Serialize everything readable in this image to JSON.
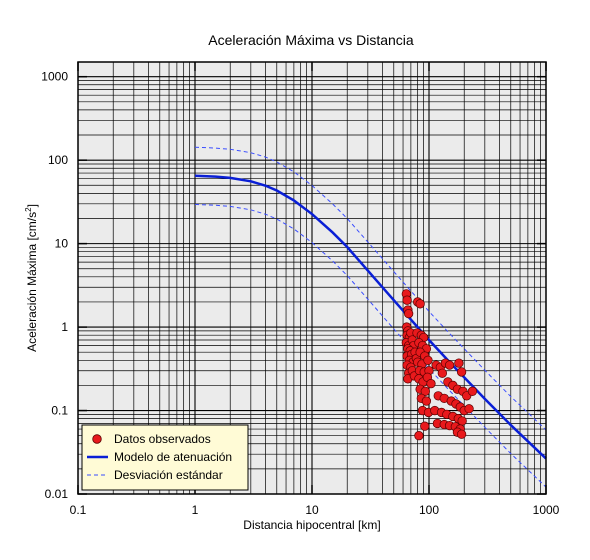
{
  "chart_data": {
    "type": "scatter",
    "title": "Aceleración Máxima vs Distancia",
    "xlabel": "Distancia hipocentral [km]",
    "ylabel": "Aceleración Máxima [cm/s",
    "ylabel_sup": "2",
    "ylabel_end": "]",
    "x_scale": "log",
    "y_scale": "log",
    "xlim": [
      0.1,
      1000
    ],
    "ylim": [
      0.01,
      1500
    ],
    "x_ticks": [
      {
        "value": 0.1,
        "label": "0.1"
      },
      {
        "value": 1,
        "label": "1"
      },
      {
        "value": 10,
        "label": "10"
      },
      {
        "value": 100,
        "label": "100"
      },
      {
        "value": 1000,
        "label": "1000"
      }
    ],
    "y_ticks": [
      {
        "value": 0.01,
        "label": "0.01"
      },
      {
        "value": 0.1,
        "label": "0.1"
      },
      {
        "value": 1,
        "label": "1"
      },
      {
        "value": 10,
        "label": "10"
      },
      {
        "value": 100,
        "label": "100"
      },
      {
        "value": 1000,
        "label": "1000"
      }
    ],
    "grid": true,
    "legend_position": "bottom-left",
    "colors": {
      "observed": "#e8191c",
      "model": "#0a1fd6",
      "deviation": "#3a4dff",
      "plot_background": "#ebebeb",
      "legend_background": "#fffbd6"
    },
    "series": [
      {
        "name": "Datos observados",
        "kind": "scatter",
        "points": [
          [
            64,
            2.5
          ],
          [
            65,
            2.1
          ],
          [
            66,
            1.6
          ],
          [
            67,
            1.45
          ],
          [
            64.5,
            1.0
          ],
          [
            66,
            0.9
          ],
          [
            65,
            0.8
          ],
          [
            68,
            0.75
          ],
          [
            64,
            0.65
          ],
          [
            67,
            0.6
          ],
          [
            70,
            0.85
          ],
          [
            72,
            0.7
          ],
          [
            74,
            0.6
          ],
          [
            66,
            0.55
          ],
          [
            69,
            0.52
          ],
          [
            65,
            0.45
          ],
          [
            71,
            0.47
          ],
          [
            76,
            0.5
          ],
          [
            68,
            0.4
          ],
          [
            73,
            0.38
          ],
          [
            65,
            0.35
          ],
          [
            70,
            0.33
          ],
          [
            78,
            0.42
          ],
          [
            67,
            0.28
          ],
          [
            72,
            0.3
          ],
          [
            66,
            0.24
          ],
          [
            75,
            0.26
          ],
          [
            80,
            2.0
          ],
          [
            84,
            1.9
          ],
          [
            79,
            0.85
          ],
          [
            86,
            0.8
          ],
          [
            90,
            0.75
          ],
          [
            82,
            0.65
          ],
          [
            88,
            0.6
          ],
          [
            95,
            0.55
          ],
          [
            84,
            0.5
          ],
          [
            92,
            0.45
          ],
          [
            80,
            0.38
          ],
          [
            87,
            0.36
          ],
          [
            98,
            0.4
          ],
          [
            83,
            0.3
          ],
          [
            91,
            0.29
          ],
          [
            100,
            0.3
          ],
          [
            82,
            0.24
          ],
          [
            89,
            0.22
          ],
          [
            97,
            0.25
          ],
          [
            84,
            0.18
          ],
          [
            93,
            0.17
          ],
          [
            104,
            0.21
          ],
          [
            86,
            0.14
          ],
          [
            95,
            0.13
          ],
          [
            88,
            0.1
          ],
          [
            99,
            0.095
          ],
          [
            92,
            0.065
          ],
          [
            82,
            0.05
          ],
          [
            115,
            0.35
          ],
          [
            125,
            0.33
          ],
          [
            138,
            0.37
          ],
          [
            150,
            0.35
          ],
          [
            180,
            0.37
          ],
          [
            190,
            0.29
          ],
          [
            130,
            0.28
          ],
          [
            145,
            0.22
          ],
          [
            160,
            0.2
          ],
          [
            175,
            0.18
          ],
          [
            195,
            0.17
          ],
          [
            210,
            0.15
          ],
          [
            235,
            0.17
          ],
          [
            120,
            0.15
          ],
          [
            135,
            0.14
          ],
          [
            155,
            0.13
          ],
          [
            170,
            0.12
          ],
          [
            185,
            0.11
          ],
          [
            200,
            0.1
          ],
          [
            220,
            0.105
          ],
          [
            112,
            0.1
          ],
          [
            128,
            0.095
          ],
          [
            142,
            0.09
          ],
          [
            160,
            0.085
          ],
          [
            178,
            0.08
          ],
          [
            192,
            0.075
          ],
          [
            118,
            0.07
          ],
          [
            135,
            0.068
          ],
          [
            150,
            0.066
          ],
          [
            168,
            0.064
          ],
          [
            185,
            0.06
          ],
          [
            175,
            0.055
          ],
          [
            190,
            0.052
          ]
        ]
      },
      {
        "name": "Modelo de atenuación",
        "kind": "line",
        "points": [
          [
            1,
            65
          ],
          [
            1.5,
            63.4
          ],
          [
            2,
            61.3
          ],
          [
            3,
            55.8
          ],
          [
            4,
            49.5
          ],
          [
            5,
            43.3
          ],
          [
            7,
            32.9
          ],
          [
            10,
            22.6
          ],
          [
            15,
            13.6
          ],
          [
            20,
            9.1
          ],
          [
            30,
            4.75
          ],
          [
            50,
            2.1
          ],
          [
            70,
            1.23
          ],
          [
            100,
            0.7
          ],
          [
            150,
            0.38
          ],
          [
            200,
            0.25
          ],
          [
            300,
            0.138
          ],
          [
            500,
            0.067
          ],
          [
            700,
            0.0428
          ],
          [
            1000,
            0.0266
          ]
        ]
      },
      {
        "name": "Desviación estándar",
        "kind": "dashed-line",
        "points": [
          [
            1,
            143
          ],
          [
            1.5,
            139.5
          ],
          [
            2,
            134.9
          ],
          [
            3,
            122.8
          ],
          [
            4,
            108.9
          ],
          [
            5,
            95.3
          ],
          [
            7,
            72.4
          ],
          [
            10,
            49.7
          ],
          [
            15,
            29.9
          ],
          [
            20,
            20
          ],
          [
            30,
            10.45
          ],
          [
            50,
            4.62
          ],
          [
            70,
            2.71
          ],
          [
            100,
            1.54
          ],
          [
            150,
            0.836
          ],
          [
            200,
            0.55
          ],
          [
            300,
            0.304
          ],
          [
            500,
            0.147
          ],
          [
            700,
            0.0942
          ],
          [
            1000,
            0.0585
          ]
        ]
      },
      {
        "name": "",
        "kind": "dashed-line",
        "points": [
          [
            1,
            29.5
          ],
          [
            1.5,
            28.8
          ],
          [
            2,
            27.9
          ],
          [
            3,
            25.4
          ],
          [
            4,
            22.5
          ],
          [
            5,
            19.7
          ],
          [
            7,
            15
          ],
          [
            10,
            10.3
          ],
          [
            15,
            6.2
          ],
          [
            20,
            4.14
          ],
          [
            30,
            2.16
          ],
          [
            50,
            0.95
          ],
          [
            70,
            0.56
          ],
          [
            100,
            0.318
          ],
          [
            150,
            0.173
          ],
          [
            200,
            0.114
          ],
          [
            300,
            0.063
          ],
          [
            500,
            0.0305
          ],
          [
            700,
            0.0195
          ],
          [
            1000,
            0.0121
          ]
        ]
      }
    ]
  }
}
